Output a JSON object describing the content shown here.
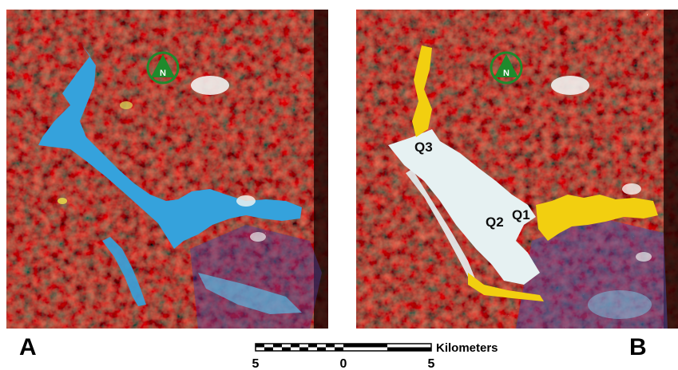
{
  "panels": [
    {
      "letter": "A",
      "north_arrow_label": "N",
      "zones": []
    },
    {
      "letter": "B",
      "north_arrow_label": "N",
      "zones": [
        "Q1",
        "Q2",
        "Q3"
      ]
    }
  ],
  "scale": {
    "unit": "Kilometers",
    "ticks": [
      "5",
      "0",
      "5"
    ]
  },
  "colors": {
    "vegetation": "#a11a0c",
    "reservoir_water": "#35a2dc",
    "zone_yellow": "#f2cf10",
    "zone_pale": "#e6f1f2",
    "north_arrow": "#1f8a2c"
  },
  "icons": {
    "north_arrow": "north-arrow-icon"
  }
}
